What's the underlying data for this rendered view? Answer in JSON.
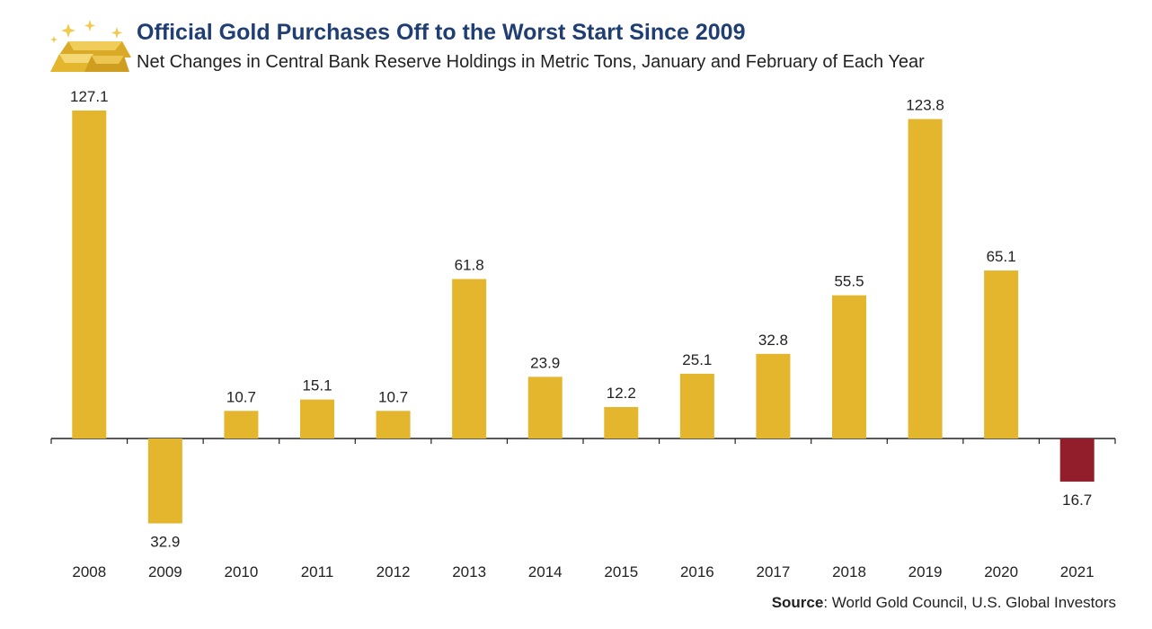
{
  "title": "Official Gold Purchases Off to the Worst Start Since 2009",
  "subtitle": "Net Changes in Central Bank Reserve Holdings in Metric Tons, January and February of Each Year",
  "source": {
    "label": "Source",
    "text": ": World Gold Council, U.S. Global Investors"
  },
  "logo_icon": "gold-bars-icon",
  "colors": {
    "gold": "#e3b62d",
    "negative": "#931e2b",
    "title": "#1f3e73",
    "axis": "#222222"
  },
  "chart_data": {
    "type": "bar",
    "title": "Official Gold Purchases Off to the Worst Start Since 2009",
    "subtitle": "Net Changes in Central Bank Reserve Holdings in Metric Tons, January and February of Each Year",
    "categories": [
      "2008",
      "2009",
      "2010",
      "2011",
      "2012",
      "2013",
      "2014",
      "2015",
      "2016",
      "2017",
      "2018",
      "2019",
      "2020",
      "2021"
    ],
    "values": [
      127.1,
      -32.9,
      10.7,
      15.1,
      10.7,
      61.8,
      23.9,
      12.2,
      25.1,
      32.8,
      55.5,
      123.8,
      65.1,
      -16.7
    ],
    "value_labels": [
      "127.1",
      "32.9",
      "10.7",
      "15.1",
      "10.7",
      "61.8",
      "23.9",
      "12.2",
      "25.1",
      "32.8",
      "55.5",
      "123.8",
      "65.1",
      "16.7"
    ],
    "bar_colors": [
      "#e3b62d",
      "#e3b62d",
      "#e3b62d",
      "#e3b62d",
      "#e3b62d",
      "#e3b62d",
      "#e3b62d",
      "#e3b62d",
      "#e3b62d",
      "#e3b62d",
      "#e3b62d",
      "#e3b62d",
      "#e3b62d",
      "#931e2b"
    ],
    "xlabel": "",
    "ylabel": "",
    "ylim": [
      -40,
      130
    ],
    "grid": false,
    "legend": "none"
  }
}
